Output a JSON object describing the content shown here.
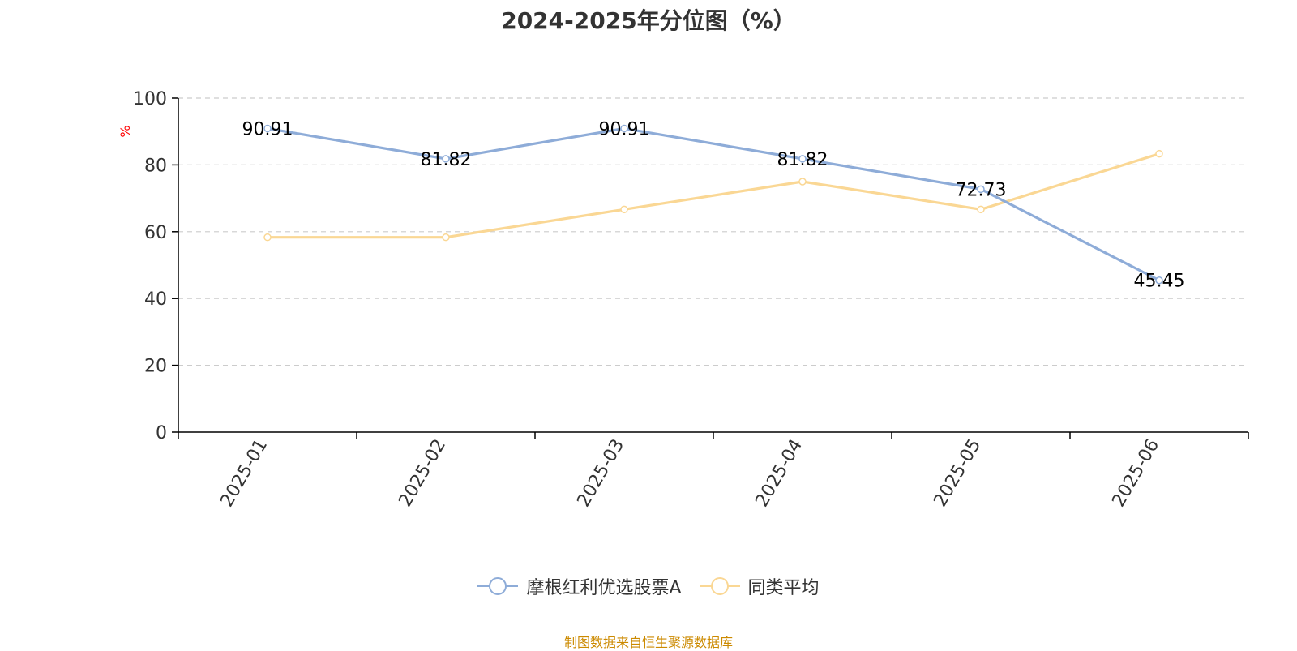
{
  "title": "2024-2025年分位图（%）",
  "source_note": "制图数据来自恒生聚源数据库",
  "chart_data": {
    "type": "line",
    "title": "2024-2025年分位图（%）",
    "xlabel": "",
    "ylabel": "%",
    "categories": [
      "2025-01",
      "2025-02",
      "2025-03",
      "2025-04",
      "2025-05",
      "2025-06"
    ],
    "ylim": [
      0,
      100
    ],
    "yticks": [
      0,
      20,
      40,
      60,
      80,
      100
    ],
    "grid": true,
    "legend_position": "bottom",
    "series": [
      {
        "name": "摩根红利优选股票A",
        "color": "#8eacd8",
        "values": [
          90.91,
          81.82,
          90.91,
          81.82,
          72.73,
          45.45
        ],
        "labels": [
          "90.91",
          "81.82",
          "90.91",
          "81.82",
          "72.73",
          "45.45"
        ]
      },
      {
        "name": "同类平均",
        "color": "#fad794",
        "values": [
          58.33,
          58.33,
          66.67,
          75.0,
          66.67,
          83.33
        ],
        "labels": []
      }
    ]
  }
}
